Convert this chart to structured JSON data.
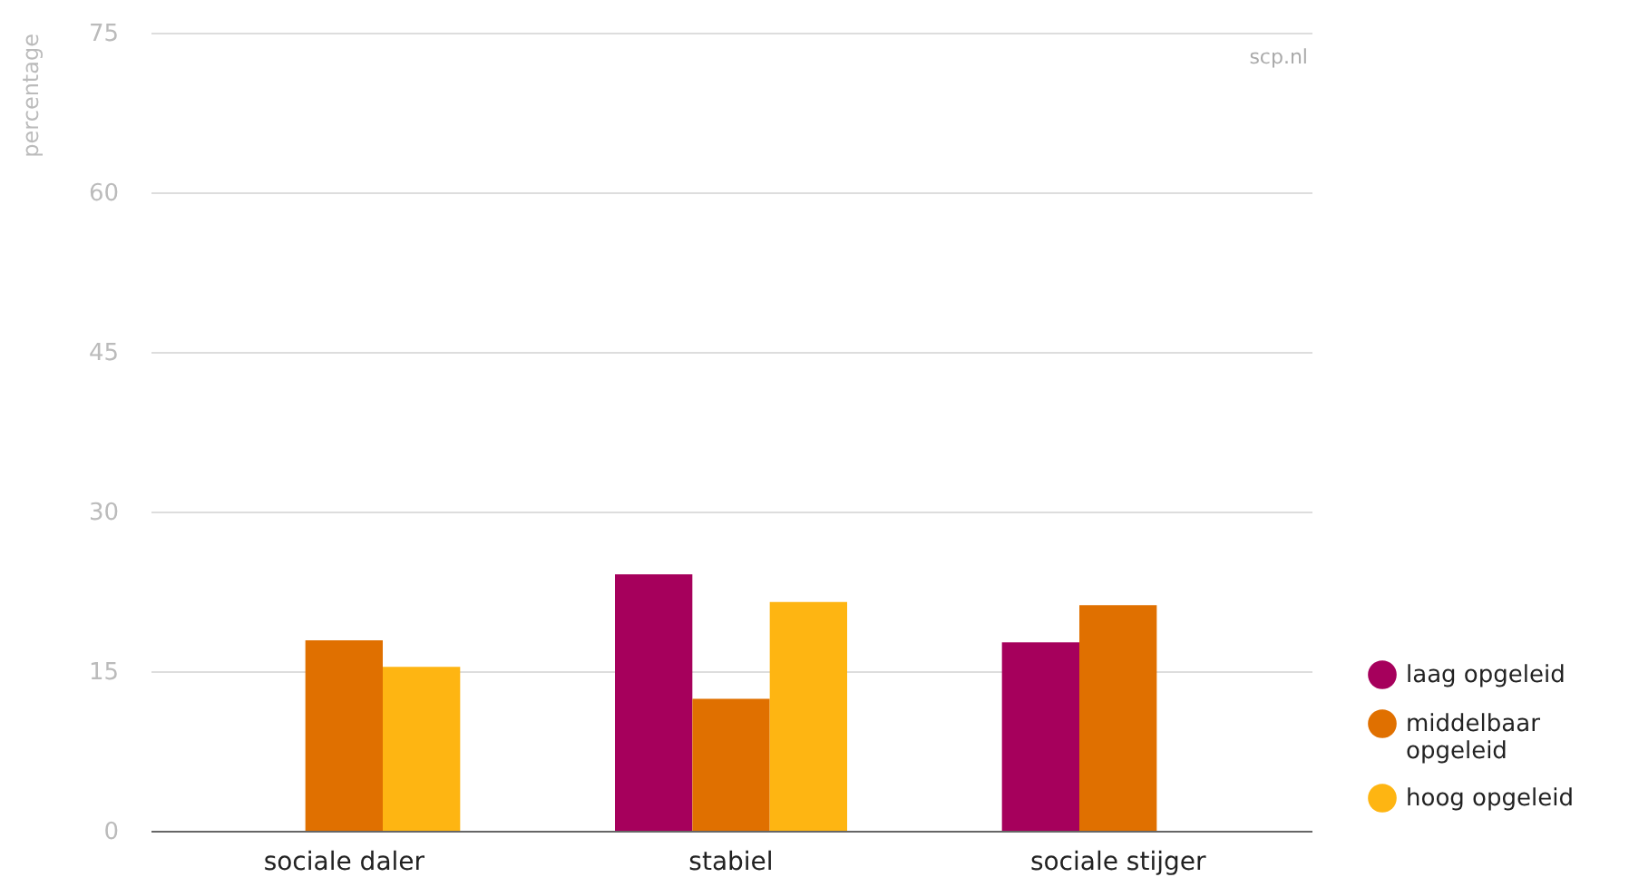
{
  "chart_data": {
    "type": "bar",
    "ylabel": "percentage",
    "categories": [
      "sociale daler",
      "stabiel",
      "sociale stijger"
    ],
    "series": [
      {
        "name": "laag opgeleid",
        "color": "#a6005c",
        "values": [
          null,
          24.1,
          17.7
        ]
      },
      {
        "name": "middelbaar opgeleid",
        "color": "#e07000",
        "values": [
          17.9,
          12.4,
          21.2
        ]
      },
      {
        "name": "hoog opgeleid",
        "color": "#feb512",
        "values": [
          15.4,
          21.5,
          null
        ]
      }
    ],
    "ylim": [
      0,
      75
    ],
    "yticks": [
      0,
      15,
      30,
      45,
      60,
      75
    ],
    "grid": "y",
    "legend": "bottom right",
    "annotations": [
      "scp.nl"
    ]
  }
}
